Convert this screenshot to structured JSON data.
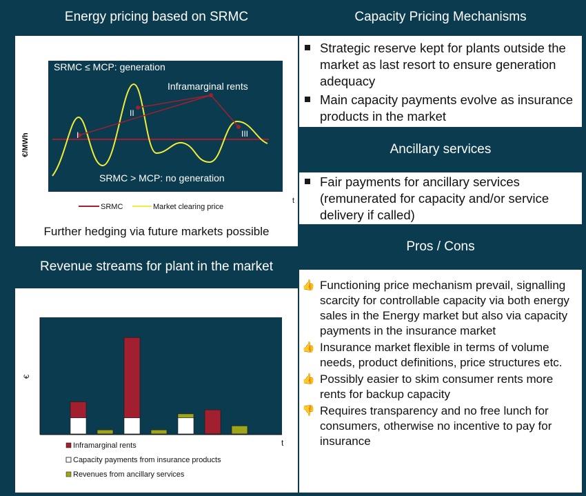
{
  "energy_panel": {
    "title": "Energy pricing based on SRMC",
    "y_label": "€/MWh",
    "x_label": "t",
    "label_top": "SRMC ≤ MCP:  generation",
    "label_bottom": "SRMC > MCP:  no generation",
    "label_rents": "Inframarginal rents",
    "marker_I": "I",
    "marker_II": "II",
    "marker_III": "III",
    "legend_srmc": "SRMC",
    "legend_mcp": "Market clearing price",
    "footnote": "Further hedging  via future markets possible",
    "colors": {
      "srmc": "#a21f2f",
      "mcp": "#f2ec3a",
      "plot_bg": "#0b3b4e"
    }
  },
  "revenue_panel": {
    "title": "Revenue streams for plant in the market",
    "y_label": "€",
    "x_label": "t",
    "legend": [
      {
        "label": "Inframarginal rents",
        "color": "#a21f2f"
      },
      {
        "label": "Capacity payments from insurance products",
        "color": "#ffffff"
      },
      {
        "label": "Revenues from ancillary services",
        "color": "#9fa51a"
      }
    ]
  },
  "chart_data": {
    "type": "bar",
    "title": "",
    "xlabel": "t",
    "ylabel": "€",
    "stacked": true,
    "series": [
      {
        "name": "Capacity payments from insurance products",
        "color": "#ffffff",
        "values": [
          1.0,
          0,
          1.0,
          0,
          1.0,
          0,
          0
        ]
      },
      {
        "name": "Revenues from ancillary services",
        "color": "#9fa51a",
        "values": [
          0,
          0.25,
          0,
          0.25,
          0.25,
          0,
          0.5
        ]
      },
      {
        "name": "Inframarginal rents",
        "color": "#a21f2f",
        "values": [
          1.0,
          0,
          5.0,
          0,
          0,
          1.5,
          0
        ]
      }
    ],
    "ylim": [
      0,
      7
    ]
  },
  "capacity_panel": {
    "title": "Capacity Pricing Mechanisms",
    "bullets": [
      "Strategic reserve kept for plants outside the market as last resort to ensure generation adequacy",
      "Main capacity payments evolve as insurance products in the market"
    ]
  },
  "ancillary_panel": {
    "title": "Ancillary services",
    "bullets": [
      "Fair payments for ancillary services (remunerated for capacity and/or service delivery if called)"
    ]
  },
  "pros_cons_panel": {
    "title": "Pros / Cons",
    "items": [
      {
        "kind": "pro",
        "icon": "thumbs-up-icon",
        "text": "Functioning  price mechanism prevail, signalling  scarcity for controllable  capacity via both energy sales in the Energy market but also via capacity payments in the insurance market"
      },
      {
        "kind": "pro",
        "icon": "thumbs-up-icon",
        "text": "Insurance market flexible in terms of volume needs, product definitions, price structures etc."
      },
      {
        "kind": "pro",
        "icon": "thumbs-up-icon",
        "text": "Possibly easier to skim consumer rents more rents for backup capacity"
      },
      {
        "kind": "con",
        "icon": "thumbs-down-icon",
        "text": "Requires transparency and no free lunch for consumers, otherwise no incentive to pay for insurance"
      }
    ]
  }
}
